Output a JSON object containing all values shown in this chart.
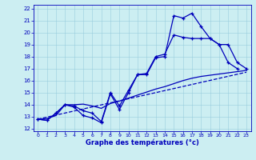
{
  "background_color": "#cceef2",
  "line_color": "#0000bb",
  "grid_color": "#99ccdd",
  "xlabel": "Graphe des températures (°c)",
  "ylim": [
    11.8,
    22.3
  ],
  "xlim": [
    -0.5,
    23.5
  ],
  "ytick_vals": [
    12,
    13,
    14,
    15,
    16,
    17,
    18,
    19,
    20,
    21,
    22
  ],
  "xtick_vals": [
    0,
    1,
    2,
    3,
    4,
    5,
    6,
    7,
    8,
    9,
    10,
    11,
    12,
    13,
    14,
    15,
    16,
    17,
    18,
    19,
    20,
    21,
    22,
    23
  ],
  "line1_x": [
    0,
    1,
    2,
    3,
    4,
    5,
    6,
    7,
    8,
    9,
    10,
    11,
    12,
    13,
    14,
    15,
    16,
    17,
    18,
    19,
    20,
    21,
    22
  ],
  "line1_y": [
    12.8,
    12.7,
    13.3,
    14.0,
    13.8,
    13.1,
    12.9,
    12.5,
    14.9,
    13.6,
    15.0,
    16.5,
    16.5,
    17.9,
    18.0,
    21.4,
    21.2,
    21.6,
    20.5,
    19.5,
    19.0,
    17.5,
    17.0
  ],
  "line2_x": [
    0,
    1,
    2,
    3,
    4,
    5,
    6,
    7,
    8,
    9,
    10,
    11,
    12,
    13,
    14,
    15,
    16,
    17,
    18,
    19,
    20,
    21,
    22,
    23
  ],
  "line2_y": [
    12.8,
    12.7,
    13.3,
    14.0,
    13.9,
    13.5,
    13.3,
    12.6,
    15.0,
    13.9,
    15.2,
    16.5,
    16.6,
    18.0,
    18.2,
    19.8,
    19.6,
    19.5,
    19.5,
    19.5,
    19.0,
    19.0,
    17.5,
    17.0
  ],
  "line3_x": [
    0,
    23
  ],
  "line3_y": [
    12.8,
    16.7
  ],
  "line4_x": [
    0,
    1,
    2,
    3,
    4,
    5,
    6,
    7,
    8,
    9,
    10,
    11,
    12,
    13,
    14,
    15,
    16,
    17,
    18,
    19,
    20,
    21,
    22,
    23
  ],
  "line4_y": [
    12.8,
    12.85,
    13.1,
    14.0,
    14.0,
    14.05,
    13.9,
    13.7,
    14.1,
    14.3,
    14.55,
    14.8,
    15.05,
    15.3,
    15.5,
    15.75,
    16.0,
    16.2,
    16.35,
    16.45,
    16.55,
    16.65,
    16.75,
    16.85
  ]
}
